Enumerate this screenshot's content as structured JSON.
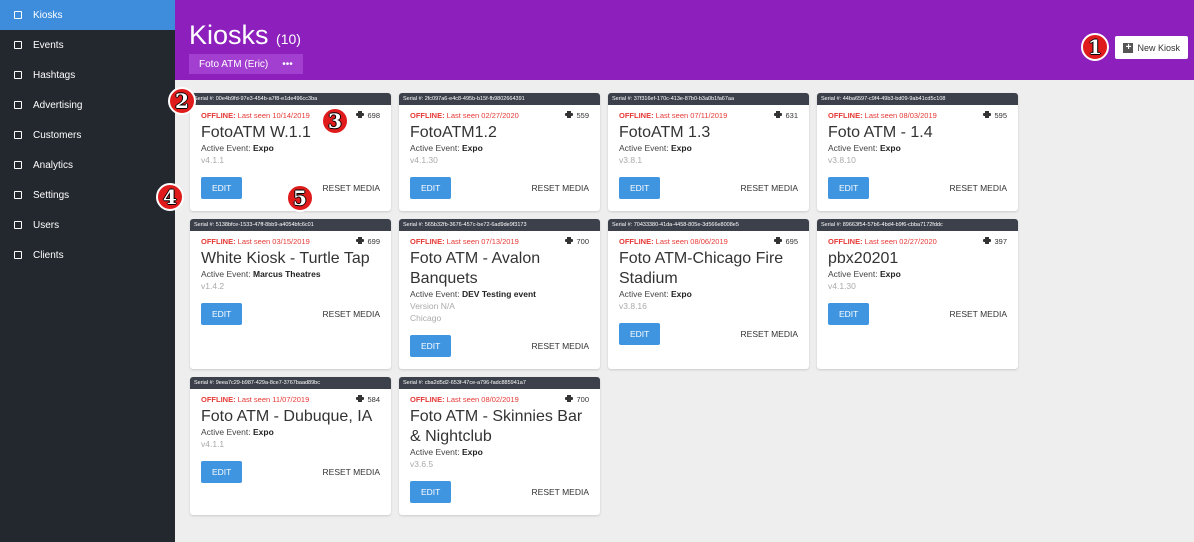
{
  "sidebar": {
    "items": [
      "Kiosks",
      "Events",
      "Hashtags",
      "Advertising",
      "Customers",
      "Analytics",
      "Settings",
      "Users",
      "Clients"
    ],
    "active": 0
  },
  "header": {
    "title": "Kiosks",
    "count": "(10)",
    "tab": "Foto ATM (Eric)",
    "tab_menu": "•••",
    "new_button": "New Kiosk"
  },
  "annotations": [
    "1",
    "2",
    "3",
    "4",
    "5"
  ],
  "kiosks": [
    {
      "serial": "Serial #: 00e4b9fd-97e3-454b-a7f8-e1de496cc3ba",
      "status": "OFFLINE:",
      "last_seen": "Last seen 10/14/2019",
      "prints": "698",
      "name": "FotoATM W.1.1",
      "event_label": "Active Event:",
      "event": "Expo",
      "version": "v4.1.1",
      "edit": "EDIT",
      "reset": "RESET MEDIA"
    },
    {
      "serial": "Serial #: 2fc097a6-e4c8-495b-b15f-fb9802664391",
      "status": "OFFLINE:",
      "last_seen": "Last seen 02/27/2020",
      "prints": "559",
      "name": "FotoATM1.2",
      "event_label": "Active Event:",
      "event": "Expo",
      "version": "v4.1.30",
      "edit": "EDIT",
      "reset": "RESET MEDIA"
    },
    {
      "serial": "Serial #: 37f316ef-170c-413e-87b0-b3a0b1fa67aa",
      "status": "OFFLINE:",
      "last_seen": "Last seen 07/11/2019",
      "prints": "631",
      "name": "FotoATM 1.3",
      "event_label": "Active Event:",
      "event": "Expo",
      "version": "v3.8.1",
      "edit": "EDIT",
      "reset": "RESET MEDIA"
    },
    {
      "serial": "Serial #: 44ba6597-c9f4-49b3-bd09-9ab41cd5c108",
      "status": "OFFLINE:",
      "last_seen": "Last seen 08/03/2019",
      "prints": "595",
      "name": "Foto ATM - 1.4",
      "event_label": "Active Event:",
      "event": "Expo",
      "version": "v3.8.10",
      "edit": "EDIT",
      "reset": "RESET MEDIA"
    },
    {
      "serial": "Serial #: 5138bfce-1533-47ff-8bb9-a4054bfc6c01",
      "status": "OFFLINE:",
      "last_seen": "Last seen 03/15/2019",
      "prints": "699",
      "name": "White Kiosk - Turtle Tap",
      "event_label": "Active Event:",
      "event": "Marcus Theatres",
      "version": "v1.4.2",
      "edit": "EDIT",
      "reset": "RESET MEDIA"
    },
    {
      "serial": "Serial #: 565b32fb-3676-457c-be72-6ad9de9f3173",
      "status": "OFFLINE:",
      "last_seen": "Last seen 07/13/2019",
      "prints": "700",
      "name": "Foto ATM - Avalon Banquets",
      "event_label": "Active Event:",
      "event": "DEV Testing event",
      "version": "Version N/A",
      "location": "Chicago",
      "edit": "EDIT",
      "reset": "RESET MEDIA"
    },
    {
      "serial": "Serial #: 70433380-41da-4458-805e-3d566e8008e5",
      "status": "OFFLINE:",
      "last_seen": "Last seen 08/06/2019",
      "prints": "695",
      "name": "Foto ATM-Chicago Fire Stadium",
      "event_label": "Active Event:",
      "event": "Expo",
      "version": "v3.8.16",
      "edit": "EDIT",
      "reset": "RESET MEDIA"
    },
    {
      "serial": "Serial #: 89663f54-57b6-4bd4-b9f6-cbba7172fddc",
      "status": "OFFLINE:",
      "last_seen": "Last seen 02/27/2020",
      "prints": "397",
      "name": "pbx20201",
      "event_label": "Active Event:",
      "event": "Expo",
      "version": "v4.1.30",
      "edit": "EDIT",
      "reset": "RESET MEDIA"
    },
    {
      "serial": "Serial #: 9eea7c29-b987-429a-8ce7-3767baad89bc",
      "status": "OFFLINE:",
      "last_seen": "Last seen 11/07/2019",
      "prints": "584",
      "name": "Foto ATM - Dubuque, IA",
      "event_label": "Active Event:",
      "event": "Expo",
      "version": "v4.1.1",
      "edit": "EDIT",
      "reset": "RESET MEDIA"
    },
    {
      "serial": "Serial #: cba2d5d2-653f-47ce-a796-fadc885941a7",
      "status": "OFFLINE:",
      "last_seen": "Last seen 08/02/2019",
      "prints": "700",
      "name": "Foto ATM - Skinnies Bar & Nightclub",
      "event_label": "Active Event:",
      "event": "Expo",
      "version": "v3.6.5",
      "edit": "EDIT",
      "reset": "RESET MEDIA"
    }
  ]
}
